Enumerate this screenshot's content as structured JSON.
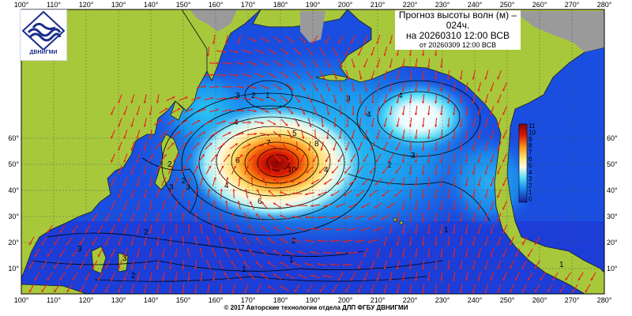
{
  "title": {
    "line1": "Прогноз высоты волн (м) –",
    "line2": "024ч.",
    "line3": "на 20260310 12:00 ВСВ",
    "line4": "от 20260309 12:00 ВСВ"
  },
  "logo": {
    "text": "ДВНИГМИ",
    "icon": "wave-logo-icon"
  },
  "footer": "© 2017 Авторские технологии отдела ДЛП ФГБУ ДВНИГМИ",
  "map": {
    "lon_ticks": [
      "100°",
      "110°",
      "120°",
      "130°",
      "140°",
      "150°",
      "160°",
      "170°",
      "180°",
      "190°",
      "200°",
      "210°",
      "220°",
      "230°",
      "240°",
      "250°",
      "260°",
      "270°",
      "280°"
    ],
    "lat_ticks": [
      "10°",
      "20°",
      "30°",
      "40°",
      "50°",
      "60°"
    ],
    "colorbar_labels": [
      "11",
      "10",
      "9",
      "8",
      "7",
      "6",
      "5",
      "4",
      "3",
      "2",
      "1",
      "0"
    ],
    "contour_labels": [
      "1",
      "2",
      "2",
      "2",
      "2",
      "3",
      "3",
      "3",
      "3",
      "3",
      "3",
      "4",
      "4",
      "4",
      "4",
      "5",
      "6",
      "6",
      "7",
      "8",
      "10",
      "1",
      "2",
      "2",
      "3",
      "4",
      "1",
      "1",
      "2",
      "1"
    ],
    "colors": {
      "land": "#a8c83c",
      "coast": "#1a1a1a",
      "arrow": "#e8241c",
      "grid": "#444444"
    }
  }
}
